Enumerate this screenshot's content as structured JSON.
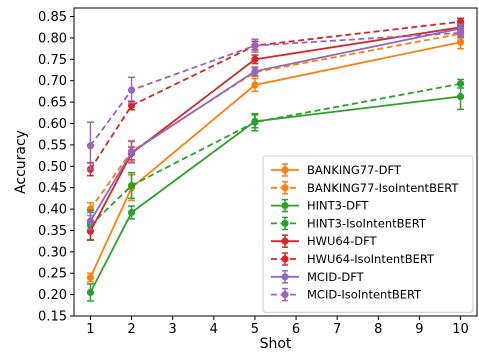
{
  "chart_data": {
    "type": "line",
    "title": "",
    "xlabel": "Shot",
    "ylabel": "Accuracy",
    "x": [
      1,
      2,
      5,
      10
    ],
    "xlim": [
      0.6,
      10.4
    ],
    "ylim": [
      0.15,
      0.87
    ],
    "xticks": [
      1,
      2,
      3,
      4,
      5,
      6,
      7,
      8,
      9,
      10
    ],
    "yticks": [
      0.15,
      0.2,
      0.25,
      0.3,
      0.35,
      0.4,
      0.45,
      0.5,
      0.55,
      0.6,
      0.65,
      0.7,
      0.75,
      0.8,
      0.85
    ],
    "grid": false,
    "legend_position": "lower-right",
    "series": [
      {
        "name": "BANKING77-DFT",
        "color": "#ff7f0e",
        "dashed": false,
        "values": [
          0.24,
          0.45,
          0.69,
          0.79
        ],
        "err": [
          0.01,
          0.03,
          0.015,
          0.015
        ]
      },
      {
        "name": "BANKING77-IsoIntentBERT",
        "color": "#ff7f0e",
        "dashed": true,
        "values": [
          0.4,
          0.535,
          0.72,
          0.81
        ],
        "err": [
          0.015,
          0.025,
          0.01,
          0.01
        ]
      },
      {
        "name": "HINT3-DFT",
        "color": "#2ca02c",
        "dashed": false,
        "values": [
          0.205,
          0.392,
          0.605,
          0.663
        ],
        "err": [
          0.02,
          0.015,
          0.015,
          0.03
        ]
      },
      {
        "name": "HINT3-IsoIntentBERT",
        "color": "#2ca02c",
        "dashed": true,
        "values": [
          0.362,
          0.455,
          0.603,
          0.693
        ],
        "err": [
          0.035,
          0.03,
          0.02,
          0.01
        ]
      },
      {
        "name": "HWU64-DFT",
        "color": "#d62728",
        "dashed": false,
        "values": [
          0.348,
          0.53,
          0.75,
          0.825
        ],
        "err": [
          0.02,
          0.015,
          0.01,
          0.008
        ]
      },
      {
        "name": "HWU64-IsoIntentBERT",
        "color": "#d62728",
        "dashed": true,
        "values": [
          0.493,
          0.642,
          0.782,
          0.838
        ],
        "err": [
          0.015,
          0.01,
          0.01,
          0.008
        ]
      },
      {
        "name": "MCID-DFT",
        "color": "#9467bd",
        "dashed": false,
        "values": [
          0.372,
          0.533,
          0.722,
          0.822
        ],
        "err": [
          0.02,
          0.025,
          0.01,
          0.01
        ]
      },
      {
        "name": "MCID-IsoIntentBERT",
        "color": "#9467bd",
        "dashed": true,
        "values": [
          0.548,
          0.678,
          0.782,
          0.812
        ],
        "err": [
          0.055,
          0.03,
          0.015,
          0.01
        ]
      }
    ]
  }
}
